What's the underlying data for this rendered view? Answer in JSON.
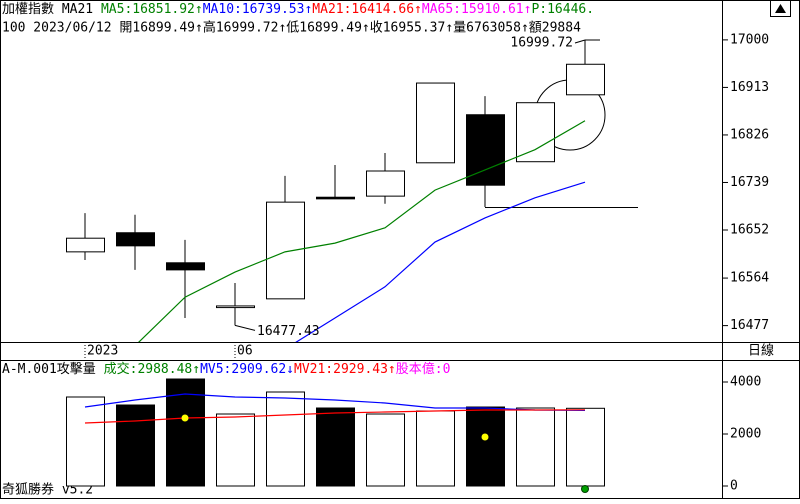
{
  "chart_data": [
    {
      "type": "candlestick",
      "header": [
        {
          "text": "加權指數 MA21 ",
          "color": "#000000"
        },
        {
          "text": "MA5:16851.92↑",
          "color": "#008000"
        },
        {
          "text": "MA10:16739.53↑",
          "color": "#0000ff"
        },
        {
          "text": "MA21:16414.66↑",
          "color": "#ff0000"
        },
        {
          "text": "MA65:15910.61↑",
          "color": "#ff00ff"
        },
        {
          "text": "P:16446.",
          "color": "#008000"
        }
      ],
      "subheader": "100 2023/06/12 開16899.49↑高16999.72↑低16899.49↑收16955.37↑量6763058↑額29884",
      "categories": [
        "2023",
        null,
        null,
        "06",
        null,
        null,
        null,
        null,
        null,
        null,
        null
      ],
      "open": [
        16612,
        16647,
        16592,
        16510,
        16526,
        16712,
        16714,
        16775,
        16863,
        16777,
        16899.49
      ],
      "high": [
        16683,
        16680,
        16634,
        16555,
        16751,
        16771,
        16793,
        16921,
        16897,
        16885,
        16999.72
      ],
      "low": [
        16597,
        16579,
        16491,
        16477.43,
        16526,
        16709,
        16700,
        16775,
        16694,
        16777,
        16899.49
      ],
      "close": [
        16637,
        16623,
        16579,
        16513,
        16703,
        16709,
        16760,
        16921,
        16734,
        16885,
        16955.37
      ],
      "series": [
        {
          "name": "MA5",
          "color": "#008000",
          "values": [
            null,
            16440,
            16529,
            16575,
            16612,
            16628,
            16656,
            16725,
            16762,
            16799,
            16851.92
          ]
        },
        {
          "name": "MA10",
          "color": "#0000ff",
          "values": [
            null,
            null,
            null,
            null,
            16434,
            16491,
            16548,
            16630,
            16674,
            16711,
            16739.53
          ]
        }
      ],
      "high_label": "16999.72",
      "low_label": "16477.43",
      "ylim": [
        16447,
        17073
      ],
      "yticks": [
        17000,
        16913,
        16826,
        16739,
        16652,
        16564,
        16477
      ],
      "period": "日線"
    },
    {
      "type": "bar",
      "header": [
        {
          "text": "A-M.001攻擊量 ",
          "color": "#000000"
        },
        {
          "text": "成交:2988.48↑",
          "color": "#008000"
        },
        {
          "text": "MV5:2909.62↓",
          "color": "#0000ff"
        },
        {
          "text": "MV21:2929.43↑",
          "color": "#ff0000"
        },
        {
          "text": "股本億:0",
          "color": "#ff00ff"
        }
      ],
      "values": [
        3423,
        3115,
        4115,
        2769,
        3615,
        3000,
        2769,
        2885,
        3038,
        3000,
        2988.48
      ],
      "series": [
        {
          "name": "MV5",
          "color": "#0000ff",
          "values": [
            3038,
            3308,
            3538,
            3423,
            3385,
            3308,
            3192,
            3000,
            3000,
            2923,
            2909.62
          ]
        },
        {
          "name": "MV21",
          "color": "#ff0000",
          "values": [
            2423,
            2500,
            2615,
            2654,
            2731,
            2808,
            2846,
            2885,
            2923,
            2923,
            2929.43
          ]
        }
      ],
      "ylim": [
        -423,
        4846
      ],
      "yticks": [
        4000,
        2000,
        0
      ],
      "footer": "奇狐勝券 v5.2"
    }
  ]
}
